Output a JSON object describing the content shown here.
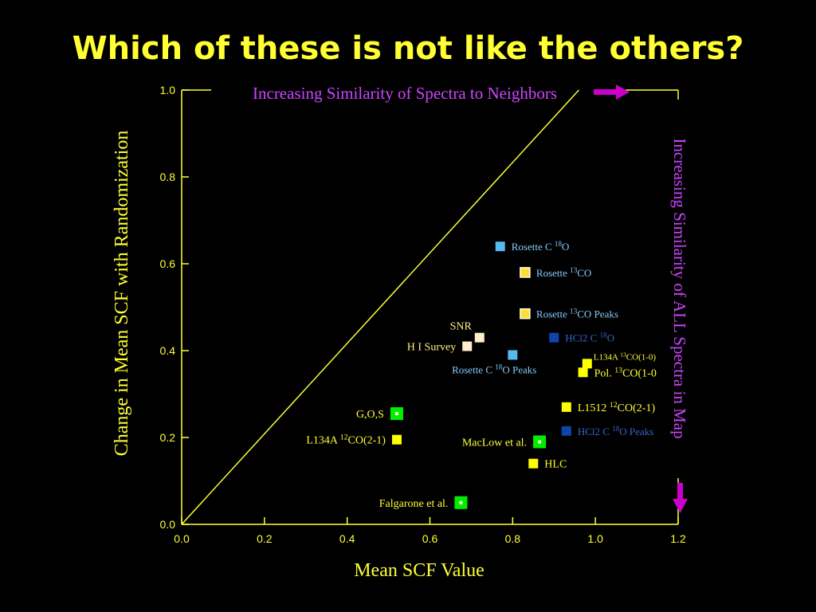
{
  "slide": {
    "title": "Which of these is not like the others?"
  },
  "annotations": {
    "top_arrow_text": "Increasing Similarity of Spectra to Neighbors",
    "right_arrow_text": "Increasing Similarity of ALL Spectra in  Map",
    "arrow_color": "#cc00cc",
    "annotation_color": "#cc44ff"
  },
  "chart_data": {
    "type": "scatter",
    "xlabel": "Mean SCF Value",
    "ylabel": "Change in Mean SCF with Randomization",
    "xlim": [
      0.0,
      1.2
    ],
    "ylim": [
      0.0,
      1.0
    ],
    "xticks": [
      "0.0",
      "0.2",
      "0.4",
      "0.6",
      "0.8",
      "1.0",
      "1.2"
    ],
    "yticks": [
      "0.0",
      "0.2",
      "0.4",
      "0.6",
      "0.8",
      "1.0"
    ],
    "diagonal_line": {
      "from": [
        0.0,
        0.0
      ],
      "to": [
        0.96,
        1.0
      ],
      "color": "#ffff33"
    },
    "axis_color": "#ffff33",
    "label_color": "#ffff33",
    "points": [
      {
        "label": "Rosette C 18O",
        "x": 0.77,
        "y": 0.64,
        "marker": "#55bbee",
        "text_color": "#88ccff",
        "label_side": "right",
        "marker_style": "plain"
      },
      {
        "label": "Rosette 13CO",
        "x": 0.83,
        "y": 0.58,
        "marker": "#ffdd33",
        "text_color": "#88ccff",
        "label_side": "right",
        "marker_style": "light-border"
      },
      {
        "label": "Rosette 13CO Peaks",
        "x": 0.83,
        "y": 0.485,
        "marker": "#ffdd33",
        "text_color": "#88ccff",
        "label_side": "right",
        "marker_style": "light-border"
      },
      {
        "label": "SNR",
        "x": 0.72,
        "y": 0.43,
        "marker": "#ffeecc",
        "text_color": "#ffee88",
        "label_side": "above-left",
        "marker_style": "plain"
      },
      {
        "label": "H I Survey",
        "x": 0.69,
        "y": 0.41,
        "marker": "#ffeecc",
        "text_color": "#ffee88",
        "label_side": "left",
        "marker_style": "plain"
      },
      {
        "label": "Rosette C 18O Peaks",
        "x": 0.8,
        "y": 0.39,
        "marker": "#55bbee",
        "text_color": "#88ccff",
        "label_side": "below-left",
        "marker_style": "plain"
      },
      {
        "label": "HCl2 C 18O",
        "x": 0.9,
        "y": 0.43,
        "marker": "#1144aa",
        "text_color": "#3366cc",
        "label_side": "right",
        "marker_style": "plain"
      },
      {
        "label": "L134A 13CO(1-0)",
        "x": 0.98,
        "y": 0.37,
        "marker": "#ffff00",
        "text_color": "#ffff33",
        "label_side": "above-right",
        "marker_style": "plain"
      },
      {
        "label": "Pol. 13CO(1-0",
        "x": 0.97,
        "y": 0.35,
        "marker": "#ffff00",
        "text_color": "#ffff33",
        "label_side": "right",
        "marker_style": "plain"
      },
      {
        "label": "L1512 12CO(2-1)",
        "x": 0.93,
        "y": 0.27,
        "marker": "#ffff00",
        "text_color": "#ffff33",
        "label_side": "right",
        "marker_style": "plain"
      },
      {
        "label": "HCl2 C 18O Peaks",
        "x": 0.93,
        "y": 0.215,
        "marker": "#1144aa",
        "text_color": "#3366cc",
        "label_side": "right",
        "marker_style": "plain"
      },
      {
        "label": "G,O,S",
        "x": 0.52,
        "y": 0.255,
        "marker": "#00ee00",
        "text_color": "#ffff33",
        "label_side": "left",
        "marker_style": "green-dot"
      },
      {
        "label": "L134A 12CO(2-1)",
        "x": 0.52,
        "y": 0.195,
        "marker": "#ffff00",
        "text_color": "#ffff33",
        "label_side": "left",
        "marker_style": "plain"
      },
      {
        "label": "MacLow et al.",
        "x": 0.865,
        "y": 0.19,
        "marker": "#00ee00",
        "text_color": "#ffff33",
        "label_side": "left",
        "marker_style": "green-dot"
      },
      {
        "label": "HLC",
        "x": 0.85,
        "y": 0.14,
        "marker": "#ffff00",
        "text_color": "#ffff33",
        "label_side": "right",
        "marker_style": "plain"
      },
      {
        "label": "Falgarone et al.",
        "x": 0.675,
        "y": 0.05,
        "marker": "#00ee00",
        "text_color": "#ffff33",
        "label_side": "left",
        "marker_style": "green-dot"
      }
    ]
  }
}
